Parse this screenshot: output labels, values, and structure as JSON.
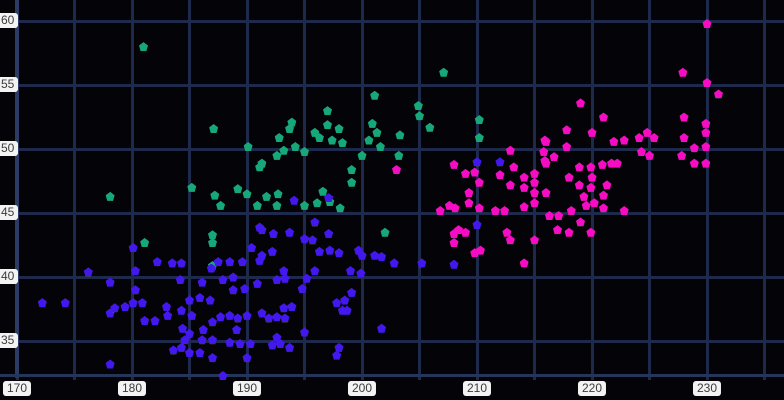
{
  "colors": {
    "background": "#040408",
    "grid": "#1d2a4c",
    "spine": "#2b3b63",
    "tick_chip_bg": "#f3f3f3",
    "tick_text": "#3c3c3c",
    "glow": "rgba(190,190,190,0.85)"
  },
  "chart_data": {
    "type": "scatter",
    "title": "",
    "xlabel": "",
    "ylabel": "",
    "x_ticks": [
      170,
      180,
      190,
      200,
      210,
      220,
      230
    ],
    "y_ticks": [
      60,
      55,
      50,
      45,
      40,
      35
    ],
    "grid_step": 5,
    "xlim": [
      168.5,
      236.7
    ],
    "ylim": [
      32.3,
      61.6
    ],
    "grid": "on",
    "legend": "none",
    "marker": "pentagon-glow",
    "series": [
      {
        "name": "cluster-green",
        "color": "#16a878",
        "points": [
          [
            181.0,
            58.0
          ],
          [
            187.1,
            51.6
          ],
          [
            190.1,
            50.2
          ],
          [
            191.1,
            48.6
          ],
          [
            185.2,
            47.0
          ],
          [
            187.2,
            46.4
          ],
          [
            189.2,
            46.9
          ],
          [
            190.0,
            46.5
          ],
          [
            178.1,
            46.3
          ],
          [
            207.1,
            56.0
          ],
          [
            201.1,
            54.2
          ],
          [
            204.9,
            53.4
          ],
          [
            205.0,
            52.6
          ],
          [
            205.9,
            51.7
          ],
          [
            210.2,
            52.3
          ],
          [
            210.2,
            50.9
          ],
          [
            197.0,
            53.0
          ],
          [
            197.0,
            51.9
          ],
          [
            198.0,
            51.6
          ],
          [
            193.9,
            52.1
          ],
          [
            193.7,
            51.6
          ],
          [
            192.8,
            50.9
          ],
          [
            193.2,
            49.9
          ],
          [
            194.2,
            50.2
          ],
          [
            195.9,
            51.3
          ],
          [
            196.3,
            50.9
          ],
          [
            197.4,
            50.7
          ],
          [
            198.3,
            50.5
          ],
          [
            200.9,
            52.0
          ],
          [
            201.3,
            51.3
          ],
          [
            200.6,
            50.7
          ],
          [
            201.6,
            50.2
          ],
          [
            200.0,
            49.5
          ],
          [
            203.3,
            51.1
          ],
          [
            203.2,
            49.5
          ],
          [
            191.3,
            48.9
          ],
          [
            192.6,
            49.5
          ],
          [
            195.0,
            49.8
          ],
          [
            199.1,
            48.4
          ],
          [
            199.1,
            47.4
          ],
          [
            192.6,
            45.6
          ],
          [
            195.0,
            45.6
          ],
          [
            196.1,
            45.8
          ],
          [
            197.2,
            45.9
          ],
          [
            198.1,
            45.4
          ],
          [
            191.7,
            46.3
          ],
          [
            192.7,
            46.5
          ],
          [
            187.7,
            45.6
          ],
          [
            190.9,
            45.6
          ],
          [
            187.0,
            43.3
          ],
          [
            187.0,
            42.7
          ],
          [
            181.1,
            42.7
          ],
          [
            187.0,
            40.9
          ],
          [
            202.0,
            43.5
          ],
          [
            196.6,
            46.7
          ]
        ]
      },
      {
        "name": "cluster-magenta",
        "color": "#f50cc3",
        "points": [
          [
            230.0,
            59.8
          ],
          [
            227.9,
            56.0
          ],
          [
            230.0,
            55.2
          ],
          [
            231.0,
            54.3
          ],
          [
            219.0,
            53.6
          ],
          [
            221.0,
            52.5
          ],
          [
            217.8,
            51.5
          ],
          [
            220.0,
            51.3
          ],
          [
            215.9,
            50.7
          ],
          [
            215.9,
            49.1
          ],
          [
            221.9,
            50.6
          ],
          [
            222.8,
            50.7
          ],
          [
            224.1,
            50.9
          ],
          [
            224.8,
            51.3
          ],
          [
            225.4,
            50.9
          ],
          [
            224.3,
            49.8
          ],
          [
            225.0,
            49.5
          ],
          [
            228.0,
            52.5
          ],
          [
            229.9,
            52.0
          ],
          [
            229.9,
            51.3
          ],
          [
            228.0,
            50.9
          ],
          [
            228.9,
            50.1
          ],
          [
            229.9,
            50.2
          ],
          [
            229.9,
            48.9
          ],
          [
            227.8,
            49.5
          ],
          [
            228.9,
            48.9
          ],
          [
            216.0,
            50.6
          ],
          [
            217.8,
            50.2
          ],
          [
            215.8,
            49.8
          ],
          [
            216.7,
            49.4
          ],
          [
            216.0,
            48.9
          ],
          [
            215.0,
            48.1
          ],
          [
            214.1,
            47.8
          ],
          [
            215.0,
            47.4
          ],
          [
            216.0,
            46.6
          ],
          [
            218.0,
            47.8
          ],
          [
            218.9,
            48.6
          ],
          [
            219.9,
            48.6
          ],
          [
            220.0,
            47.8
          ],
          [
            220.9,
            48.8
          ],
          [
            221.7,
            48.9
          ],
          [
            218.9,
            47.2
          ],
          [
            219.9,
            47.0
          ],
          [
            221.3,
            47.2
          ],
          [
            222.2,
            48.9
          ],
          [
            219.3,
            46.3
          ],
          [
            221.0,
            46.4
          ],
          [
            214.1,
            47.0
          ],
          [
            215.0,
            46.6
          ],
          [
            203.0,
            48.4
          ],
          [
            208.0,
            48.8
          ],
          [
            209.0,
            48.1
          ],
          [
            209.8,
            48.2
          ],
          [
            210.2,
            47.4
          ],
          [
            209.3,
            46.6
          ],
          [
            212.9,
            49.9
          ],
          [
            213.2,
            48.6
          ],
          [
            212.0,
            48.0
          ],
          [
            212.9,
            47.2
          ],
          [
            214.1,
            45.5
          ],
          [
            215.0,
            45.8
          ],
          [
            216.3,
            44.8
          ],
          [
            217.1,
            44.8
          ],
          [
            218.2,
            45.2
          ],
          [
            219.5,
            45.6
          ],
          [
            220.2,
            45.8
          ],
          [
            221.0,
            45.4
          ],
          [
            222.8,
            45.2
          ],
          [
            217.0,
            43.7
          ],
          [
            218.0,
            43.5
          ],
          [
            219.0,
            44.3
          ],
          [
            219.9,
            43.5
          ],
          [
            215.0,
            42.9
          ],
          [
            214.1,
            41.1
          ],
          [
            206.8,
            45.2
          ],
          [
            207.6,
            45.6
          ],
          [
            208.1,
            45.4
          ],
          [
            209.3,
            45.8
          ],
          [
            210.2,
            45.4
          ],
          [
            208.4,
            43.7
          ],
          [
            208.0,
            43.4
          ],
          [
            208.0,
            42.7
          ],
          [
            209.0,
            43.5
          ],
          [
            210.3,
            42.1
          ],
          [
            209.8,
            41.9
          ],
          [
            211.6,
            45.2
          ],
          [
            212.4,
            45.2
          ],
          [
            212.6,
            43.5
          ],
          [
            212.9,
            42.9
          ]
        ]
      },
      {
        "name": "cluster-blue",
        "color": "#4318ef",
        "points": [
          [
            180.1,
            42.3
          ],
          [
            176.2,
            40.4
          ],
          [
            178.1,
            39.6
          ],
          [
            180.3,
            40.5
          ],
          [
            182.2,
            41.2
          ],
          [
            183.5,
            41.1
          ],
          [
            184.3,
            41.1
          ],
          [
            184.2,
            39.8
          ],
          [
            186.1,
            39.6
          ],
          [
            172.2,
            38.0
          ],
          [
            174.2,
            38.0
          ],
          [
            178.1,
            37.2
          ],
          [
            178.5,
            37.6
          ],
          [
            179.4,
            37.7
          ],
          [
            180.1,
            38.0
          ],
          [
            180.9,
            38.0
          ],
          [
            180.3,
            39.0
          ],
          [
            181.1,
            36.6
          ],
          [
            182.0,
            36.6
          ],
          [
            183.0,
            37.7
          ],
          [
            183.1,
            37.0
          ],
          [
            184.4,
            36.0
          ],
          [
            185.0,
            35.6
          ],
          [
            184.3,
            34.5
          ],
          [
            185.0,
            34.1
          ],
          [
            186.1,
            35.1
          ],
          [
            186.2,
            35.9
          ],
          [
            187.0,
            36.5
          ],
          [
            187.0,
            35.1
          ],
          [
            187.7,
            36.9
          ],
          [
            188.5,
            37.0
          ],
          [
            189.2,
            36.8
          ],
          [
            190.0,
            37.0
          ],
          [
            189.1,
            35.9
          ],
          [
            190.0,
            33.7
          ],
          [
            187.9,
            32.3
          ],
          [
            178.1,
            33.2
          ],
          [
            191.1,
            43.9
          ],
          [
            190.4,
            42.3
          ],
          [
            191.1,
            41.3
          ],
          [
            189.6,
            41.2
          ],
          [
            188.5,
            41.2
          ],
          [
            187.5,
            41.2
          ],
          [
            188.8,
            40.0
          ],
          [
            187.9,
            39.8
          ],
          [
            188.8,
            39.0
          ],
          [
            189.8,
            39.1
          ],
          [
            190.9,
            39.5
          ],
          [
            185.9,
            38.4
          ],
          [
            186.8,
            38.2
          ],
          [
            185.0,
            38.2
          ],
          [
            184.3,
            37.4
          ],
          [
            185.2,
            37.0
          ],
          [
            188.5,
            34.9
          ],
          [
            189.4,
            34.8
          ],
          [
            190.3,
            34.8
          ],
          [
            184.6,
            35.1
          ],
          [
            183.6,
            34.3
          ],
          [
            185.9,
            34.1
          ],
          [
            187.0,
            33.7
          ],
          [
            194.1,
            46.0
          ],
          [
            197.1,
            46.2
          ],
          [
            186.9,
            40.7
          ],
          [
            210.0,
            49.0
          ],
          [
            212.0,
            49.0
          ],
          [
            210.0,
            44.1
          ],
          [
            208.0,
            41.0
          ],
          [
            195.9,
            44.3
          ],
          [
            197.1,
            43.4
          ],
          [
            195.0,
            43.0
          ],
          [
            195.7,
            42.9
          ],
          [
            193.7,
            43.5
          ],
          [
            192.3,
            43.4
          ],
          [
            191.3,
            43.7
          ],
          [
            192.2,
            42.0
          ],
          [
            191.3,
            41.7
          ],
          [
            193.2,
            40.5
          ],
          [
            193.3,
            39.9
          ],
          [
            192.6,
            39.8
          ],
          [
            194.8,
            39.1
          ],
          [
            195.2,
            39.9
          ],
          [
            195.9,
            40.5
          ],
          [
            196.3,
            42.0
          ],
          [
            197.2,
            42.1
          ],
          [
            198.0,
            41.9
          ],
          [
            199.7,
            42.1
          ],
          [
            200.0,
            41.7
          ],
          [
            201.1,
            41.7
          ],
          [
            201.7,
            41.6
          ],
          [
            202.8,
            41.1
          ],
          [
            205.2,
            41.1
          ],
          [
            199.0,
            40.5
          ],
          [
            199.9,
            40.3
          ],
          [
            199.1,
            38.8
          ],
          [
            198.5,
            38.2
          ],
          [
            198.3,
            37.4
          ],
          [
            198.7,
            37.4
          ],
          [
            197.8,
            38.0
          ],
          [
            193.9,
            37.7
          ],
          [
            193.2,
            37.6
          ],
          [
            192.6,
            36.9
          ],
          [
            193.3,
            36.8
          ],
          [
            191.9,
            36.8
          ],
          [
            191.3,
            37.2
          ],
          [
            192.6,
            35.3
          ],
          [
            192.9,
            34.8
          ],
          [
            193.7,
            34.5
          ],
          [
            192.2,
            34.7
          ],
          [
            195.0,
            35.7
          ],
          [
            198.0,
            34.5
          ],
          [
            201.7,
            36.0
          ],
          [
            197.8,
            33.9
          ]
        ]
      }
    ]
  }
}
